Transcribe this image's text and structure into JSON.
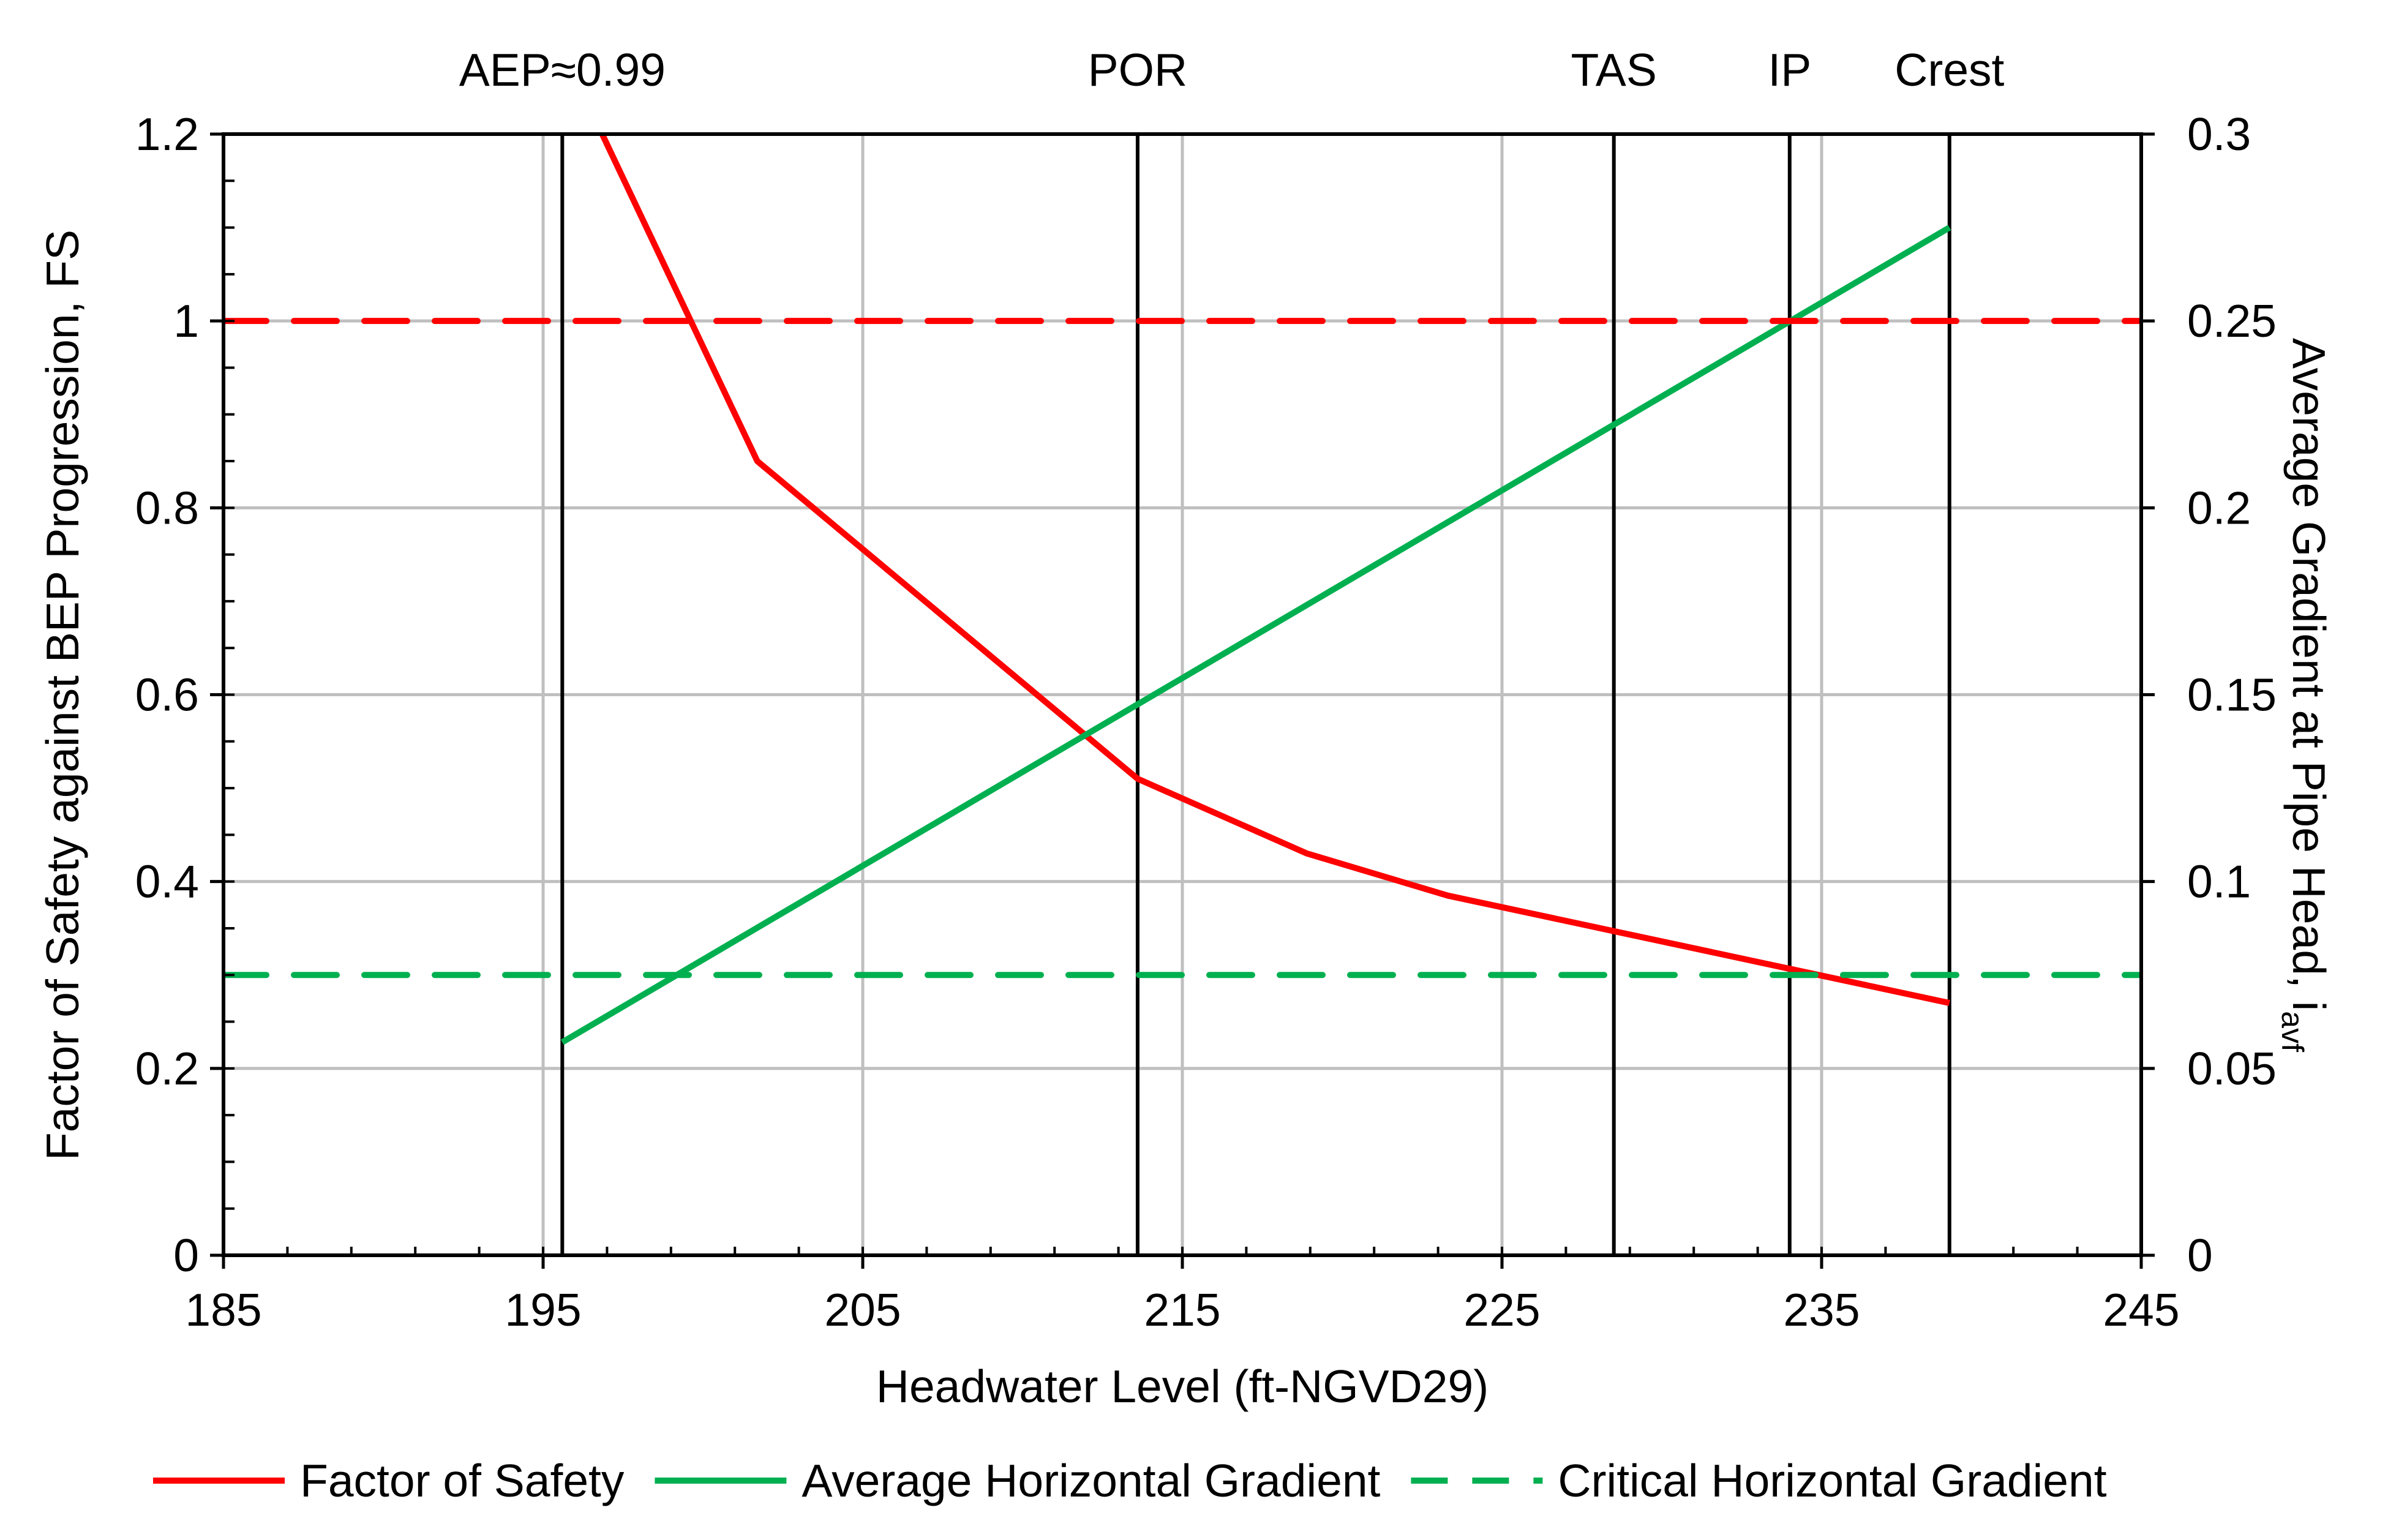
{
  "chart_data": {
    "type": "line",
    "xlabel": "Headwater Level (ft-NGVD29)",
    "ylabel": "Factor of Safety against BEP Progression, FS",
    "y2label_main": "Average Gradient at Pipe Head, i",
    "y2label_sub": "avf",
    "xlim": [
      185,
      245
    ],
    "ylim": [
      0,
      1.2
    ],
    "y2lim": [
      0,
      0.3
    ],
    "xticks": [
      185,
      195,
      205,
      215,
      225,
      235,
      245
    ],
    "yticks": [
      0,
      0.2,
      0.4,
      0.6,
      0.8,
      1,
      1.2
    ],
    "y2ticks": [
      0,
      0.05,
      0.1,
      0.15,
      0.2,
      0.25,
      0.3
    ],
    "grid": true,
    "legend_position": "bottom",
    "series": [
      {
        "name": "Factor of Safety",
        "axis": "left",
        "color": "#FF0000",
        "dash": false,
        "x": [
          195.6,
          201.7,
          213.6,
          218.9,
          223.3,
          239.0
        ],
        "y": [
          1.29,
          0.85,
          0.51,
          0.43,
          0.385,
          0.27
        ]
      },
      {
        "name": "Average Horizontal Gradient",
        "axis": "right",
        "color": "#00B050",
        "dash": false,
        "x": [
          195.6,
          239.0
        ],
        "y": [
          0.057,
          0.275
        ]
      },
      {
        "name": "Critical Horizontal Gradient",
        "axis": "right",
        "color": "#00B050",
        "dash": true,
        "x": [
          185,
          245
        ],
        "y": [
          0.075,
          0.075
        ]
      },
      {
        "axis": "left",
        "color": "#FF0000",
        "dash": true,
        "in_legend": false,
        "x": [
          185,
          245
        ],
        "y": [
          1,
          1
        ]
      }
    ],
    "vlines": [
      {
        "label": "AEP≈0.99",
        "x": 195.6
      },
      {
        "label": "POR",
        "x": 213.6
      },
      {
        "label": "TAS",
        "x": 228.5
      },
      {
        "label": "IP",
        "x": 234.0
      },
      {
        "label": "Crest",
        "x": 239.0
      }
    ]
  }
}
